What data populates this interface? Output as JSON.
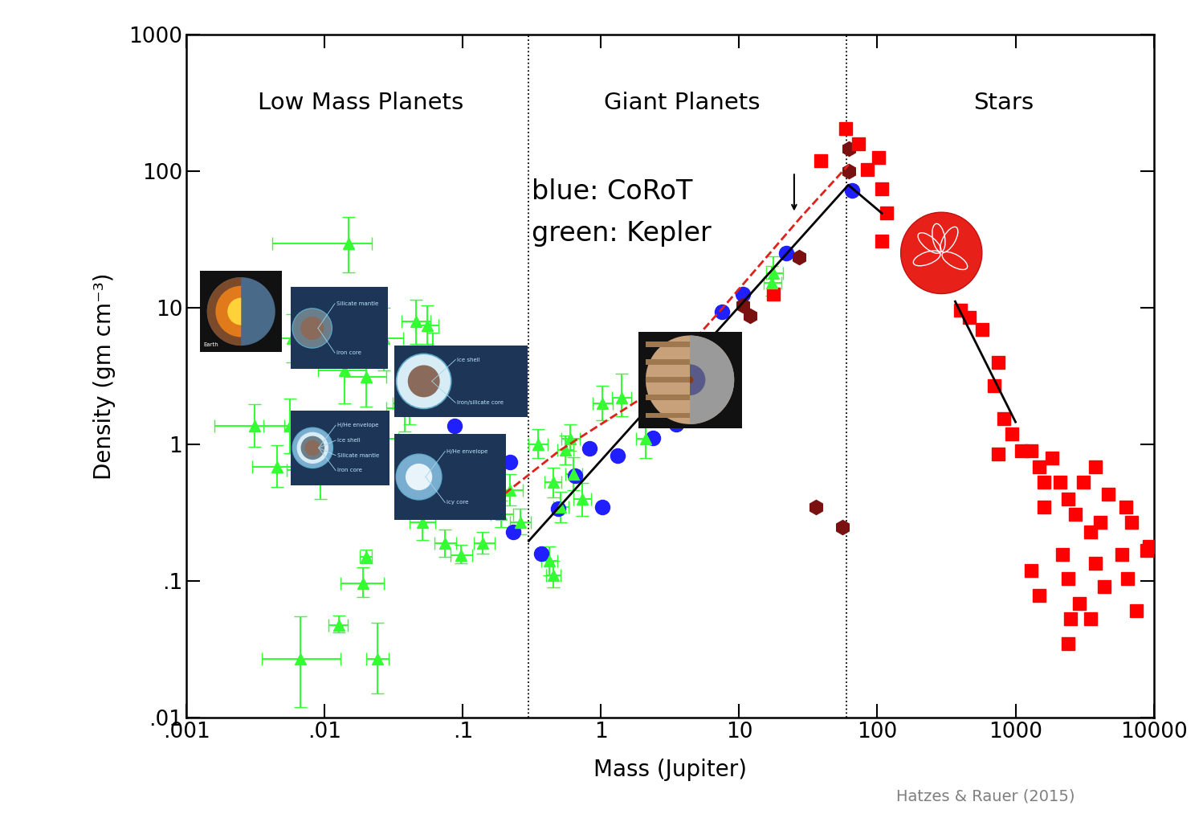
{
  "chart_data": {
    "type": "scatter",
    "log": true,
    "xlabel": "Mass (Jupiter)",
    "ylabel": "Density (gm cm⁻³)",
    "xlim": [
      0.001,
      10000
    ],
    "ylim": [
      0.01,
      1000
    ],
    "xticks": [
      {
        "value": 0.001,
        "label": ".001"
      },
      {
        "value": 0.01,
        "label": ".01"
      },
      {
        "value": 0.1,
        "label": ".1"
      },
      1,
      10,
      100,
      1000,
      10000
    ],
    "yticks": [
      {
        "value": 0.01,
        "label": ".01"
      },
      {
        "value": 0.1,
        "label": ".1"
      },
      1,
      10,
      100,
      1000
    ],
    "region_boundaries": [
      0.3,
      60
    ],
    "annotations": [
      "Low Mass Planets",
      "Giant Planets",
      "Stars",
      "blue: CoRoT",
      "green: Kepler"
    ],
    "credit": "Hatzes & Rauer (2015)",
    "arrow": {
      "x": 25,
      "y_from": 98,
      "y_to": 49
    },
    "icons": [
      {
        "labels": [
          "Earth"
        ]
      },
      {
        "labels": [
          "Silicate mantle",
          "Iron core"
        ]
      },
      {
        "labels": [
          "Ice shell",
          "Iron/silicate core"
        ]
      },
      {
        "labels": [
          "H/He envelope",
          "Ice shell",
          "Silicate mantle",
          "Iron core"
        ]
      },
      {
        "labels": [
          "H/He envelope",
          "Icy core"
        ]
      }
    ],
    "series": [
      {
        "type": "scatter",
        "color": "#33ff33",
        "marker": "triangle",
        "x": [
          0.0149,
          0.0067,
          0.024,
          0.0126,
          0.019,
          0.02,
          0.0031,
          0.0045,
          0.0056,
          0.0093,
          0.014,
          0.02,
          0.027,
          0.046,
          0.055,
          0.061,
          0.041,
          0.024,
          0.044,
          0.051,
          0.074,
          0.097,
          0.14,
          0.19,
          0.22,
          0.26,
          0.35,
          0.45,
          0.55,
          0.63,
          0.73,
          0.51,
          0.6,
          0.42,
          0.45,
          1.02,
          1.4,
          2.1,
          17.7,
          17.1,
          0.0058,
          0.038
        ],
        "values": [
          29.5,
          0.027,
          0.027,
          0.048,
          0.097,
          0.15,
          1.36,
          0.69,
          1.36,
          0.65,
          3.5,
          3.1,
          6.0,
          7.9,
          7.4,
          4.6,
          2.0,
          1.1,
          0.46,
          0.27,
          0.19,
          0.155,
          0.19,
          0.31,
          0.46,
          0.27,
          1.0,
          0.53,
          0.91,
          0.61,
          0.4,
          0.35,
          1.1,
          0.14,
          0.11,
          2.0,
          2.2,
          1.1,
          17.8,
          15.2,
          6.0,
          1.85
        ],
        "xerr": [
          [
            0.0107,
            0.0071
          ],
          [
            0.0032,
            0.0063
          ],
          [
            0.004,
            0.005
          ],
          [
            0.002,
            0.002
          ],
          [
            0.006,
            0.008
          ],
          [
            0.002,
            0.002
          ],
          [
            0.0015,
            0.002
          ],
          [
            0.0015,
            0.002
          ],
          [
            0.002,
            0.003
          ],
          [
            0.004,
            0.005
          ],
          [
            0.005,
            0.006
          ],
          [
            0.006,
            0.008
          ],
          [
            0.008,
            0.01
          ],
          [
            0.01,
            0.012
          ],
          [
            0.01,
            0.012
          ],
          [
            0.012,
            0.015
          ],
          [
            0.01,
            0.012
          ],
          [
            0.008,
            0.01
          ],
          [
            0.01,
            0.012
          ],
          [
            0.01,
            0.012
          ],
          [
            0.012,
            0.015
          ],
          [
            0.015,
            0.02
          ],
          [
            0.02,
            0.03
          ],
          [
            0.03,
            0.04
          ],
          [
            0.04,
            0.05
          ],
          [
            0.04,
            0.05
          ],
          [
            0.05,
            0.06
          ],
          [
            0.06,
            0.07
          ],
          [
            0.07,
            0.08
          ],
          [
            0.08,
            0.1
          ],
          [
            0.1,
            0.12
          ],
          [
            0.06,
            0.07
          ],
          [
            0.08,
            0.1
          ],
          [
            0.05,
            0.06
          ],
          [
            0.05,
            0.06
          ],
          [
            0.15,
            0.2
          ],
          [
            0.2,
            0.25
          ],
          [
            0.3,
            0.4
          ],
          [
            2,
            3
          ],
          [
            2,
            3
          ],
          [
            0.002,
            0.003
          ],
          [
            0.01,
            0.012
          ]
        ],
        "yerr": [
          [
            11.5,
            16.5
          ],
          [
            0.015,
            0.028
          ],
          [
            0.012,
            0.023
          ],
          [
            0.006,
            0.008
          ],
          [
            0.02,
            0.03
          ],
          [
            0.015,
            0.02
          ],
          [
            0.4,
            0.6
          ],
          [
            0.2,
            0.3
          ],
          [
            0.5,
            0.8
          ],
          [
            0.25,
            0.4
          ],
          [
            1.5,
            2.5
          ],
          [
            1.2,
            2.0
          ],
          [
            2.5,
            4.0
          ],
          [
            2.5,
            3.5
          ],
          [
            2.0,
            3.0
          ],
          [
            1.5,
            2.0
          ],
          [
            0.6,
            0.9
          ],
          [
            0.4,
            0.6
          ],
          [
            0.15,
            0.2
          ],
          [
            0.07,
            0.1
          ],
          [
            0.04,
            0.05
          ],
          [
            0.02,
            0.03
          ],
          [
            0.03,
            0.04
          ],
          [
            0.06,
            0.08
          ],
          [
            0.1,
            0.15
          ],
          [
            0.05,
            0.07
          ],
          [
            0.2,
            0.3
          ],
          [
            0.12,
            0.15
          ],
          [
            0.2,
            0.25
          ],
          [
            0.15,
            0.2
          ],
          [
            0.1,
            0.12
          ],
          [
            0.08,
            0.1
          ],
          [
            0.2,
            0.3
          ],
          [
            0.03,
            0.04
          ],
          [
            0.02,
            0.03
          ],
          [
            0.5,
            0.7
          ],
          [
            0.6,
            1.1
          ],
          [
            0.3,
            0.4
          ],
          [
            4,
            6
          ],
          [
            3,
            5
          ],
          [
            2,
            3
          ],
          [
            0.6,
            0.8
          ]
        ]
      },
      {
        "type": "scatter",
        "color": "#1f1fff",
        "marker": "circle",
        "x": [
          0.37,
          0.49,
          0.83,
          1.02,
          1.32,
          0.65,
          2.36,
          3.5,
          7.5,
          10.6,
          22,
          66,
          0.087,
          0.22,
          0.23
        ],
        "values": [
          0.16,
          0.34,
          0.93,
          0.35,
          0.83,
          0.59,
          1.11,
          1.4,
          9.3,
          12.6,
          25,
          72,
          1.36,
          0.74,
          0.23
        ]
      },
      {
        "type": "scatter",
        "color": "#7a1010",
        "marker": "hexagon",
        "x": [
          10.6,
          12,
          27,
          36,
          56,
          62,
          62
        ],
        "values": [
          10.4,
          8.7,
          23.4,
          0.35,
          0.25,
          145,
          100
        ]
      },
      {
        "type": "scatter",
        "color": "#ff0000",
        "marker": "square",
        "x": [
          17.7,
          39,
          59,
          73,
          102,
          85,
          108,
          117,
          107,
          400,
          460,
          570,
          750,
          700,
          820,
          940,
          1100,
          750,
          1290,
          1480,
          1600,
          1850,
          2100,
          2400,
          2700,
          1600,
          2200,
          2400,
          2500,
          2400,
          2900,
          1290,
          1480,
          3500,
          4100,
          4700,
          3800,
          4400,
          3500,
          6500,
          7500,
          6900,
          8900,
          6300,
          3100,
          3800,
          5900,
          9300
        ],
        "values": [
          12.6,
          118,
          203,
          157,
          126,
          103,
          74,
          49,
          30.5,
          9.6,
          8.5,
          6.9,
          4.0,
          2.7,
          1.55,
          1.2,
          0.9,
          0.85,
          0.9,
          0.69,
          0.53,
          0.8,
          0.53,
          0.4,
          0.31,
          0.35,
          0.157,
          0.104,
          0.053,
          0.035,
          0.069,
          0.119,
          0.079,
          0.23,
          0.27,
          0.43,
          0.136,
          0.091,
          0.053,
          0.104,
          0.061,
          0.27,
          0.167,
          0.35,
          0.53,
          0.69,
          0.156,
          0.18
        ]
      },
      {
        "type": "line",
        "color": "#000000",
        "line_style": "solid",
        "x": [
          0.3,
          61.7,
          108
        ],
        "values": [
          0.197,
          79,
          49
        ]
      },
      {
        "type": "line",
        "color": "#000000",
        "line_style": "solid",
        "x": [
          366,
          1000
        ],
        "values": [
          11.1,
          1.46
        ]
      },
      {
        "type": "line",
        "color": "#e0201a",
        "line_style": "dashed",
        "x": [
          0.1,
          0.18,
          0.5,
          2,
          7.5,
          28,
          62
        ],
        "values": [
          0.3,
          0.4,
          0.9,
          2.2,
          9.8,
          46,
          111
        ]
      }
    ]
  }
}
